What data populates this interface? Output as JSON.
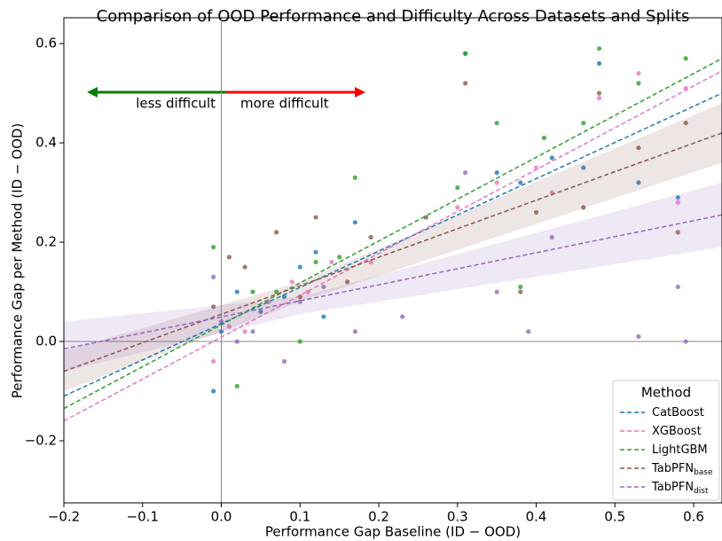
{
  "chart_data": {
    "type": "scatter",
    "title": "Comparison of OOD Performance and Difficulty Across Datasets and Splits",
    "x_label": "Performance Gap Baseline (ID − OOD)",
    "y_label": "Performance Gap per Method (ID − OOD)",
    "xlim": [
      -0.2,
      0.636
    ],
    "ylim": [
      -0.325,
      0.652
    ],
    "xticks": [
      {
        "value": -0.2,
        "label": "−0.2"
      },
      {
        "value": -0.1,
        "label": "−0.1"
      },
      {
        "value": 0,
        "label": "0.0"
      },
      0.1,
      0.2,
      0.3,
      0.4,
      0.5,
      0.6
    ],
    "yticks": [
      {
        "value": -0.2,
        "label": "−0.2"
      },
      {
        "value": 0,
        "label": "0.0"
      },
      0.2,
      0.4,
      0.6
    ],
    "annotations": [
      {
        "text": "less difficult",
        "color": "#008000"
      },
      {
        "text": "more difficult",
        "color": "#ff0000"
      }
    ],
    "legend_title": "Method",
    "legend": "lower right",
    "series": [
      {
        "name": "CatBoost",
        "color": "#1f77b4",
        "x": [
          -0.01,
          0.0,
          0.02,
          0.05,
          0.08,
          0.1,
          0.12,
          0.13,
          0.17,
          0.31,
          0.35,
          0.38,
          0.42,
          0.46,
          0.48,
          0.53,
          0.58
        ],
        "values": [
          -0.1,
          0.02,
          0.1,
          0.06,
          0.09,
          0.15,
          0.18,
          0.05,
          0.24,
          0.58,
          0.34,
          0.32,
          0.37,
          0.35,
          0.56,
          0.32,
          0.29
        ],
        "fit_x": [
          -0.2,
          0.636
        ],
        "fit": [
          -0.11,
          0.5
        ]
      },
      {
        "name": "XGBoost",
        "color": "#e377c2",
        "x": [
          -0.01,
          0.01,
          0.03,
          0.06,
          0.09,
          0.11,
          0.14,
          0.19,
          0.3,
          0.35,
          0.4,
          0.42,
          0.48,
          0.53,
          0.58,
          0.59
        ],
        "values": [
          -0.04,
          0.03,
          0.02,
          0.08,
          0.12,
          0.1,
          0.16,
          0.16,
          0.27,
          0.32,
          0.35,
          0.3,
          0.49,
          0.54,
          0.28,
          0.51
        ],
        "fit_x": [
          -0.2,
          0.636
        ],
        "fit": [
          -0.16,
          0.545
        ]
      },
      {
        "name": "LightGBM",
        "color": "#2ca02c",
        "x": [
          -0.01,
          0.02,
          0.04,
          0.07,
          0.1,
          0.12,
          0.15,
          0.17,
          0.3,
          0.31,
          0.35,
          0.38,
          0.41,
          0.46,
          0.48,
          0.53,
          0.59
        ],
        "values": [
          0.19,
          -0.09,
          0.1,
          0.1,
          0.0,
          0.16,
          0.17,
          0.33,
          0.31,
          0.58,
          0.44,
          0.11,
          0.41,
          0.44,
          0.59,
          0.52,
          0.57
        ],
        "fit_x": [
          -0.2,
          0.636
        ],
        "fit": [
          -0.135,
          0.57
        ]
      },
      {
        "name": "TabPFN",
        "subscript": "base",
        "color": "#8c564b",
        "x": [
          -0.01,
          0.01,
          0.03,
          0.07,
          0.1,
          0.12,
          0.16,
          0.19,
          0.26,
          0.31,
          0.38,
          0.4,
          0.46,
          0.48,
          0.53,
          0.58,
          0.59
        ],
        "values": [
          0.07,
          0.17,
          0.15,
          0.22,
          0.09,
          0.25,
          0.12,
          0.21,
          0.25,
          0.52,
          0.1,
          0.26,
          0.27,
          0.5,
          0.39,
          0.22,
          0.44
        ],
        "fit_x": [
          -0.2,
          0.636
        ],
        "fit": [
          -0.06,
          0.42
        ],
        "band_x": [
          -0.2,
          0.1,
          0.636
        ],
        "band_lower": [
          -0.1,
          0.08,
          0.36
        ],
        "band_upper": [
          -0.02,
          0.12,
          0.48
        ]
      },
      {
        "name": "TabPFN",
        "subscript": "dist",
        "color": "#9467bd",
        "x": [
          -0.01,
          0.0,
          0.02,
          0.04,
          0.08,
          0.1,
          0.13,
          0.17,
          0.23,
          0.31,
          0.35,
          0.39,
          0.42,
          0.53,
          0.58,
          0.59
        ],
        "values": [
          0.13,
          0.04,
          0.0,
          0.02,
          -0.04,
          0.08,
          0.11,
          0.02,
          0.05,
          0.34,
          0.1,
          0.02,
          0.21,
          0.01,
          0.11,
          0.0
        ],
        "fit_x": [
          -0.2,
          0.636
        ],
        "fit": [
          -0.015,
          0.255
        ],
        "band_x": [
          -0.2,
          0.1,
          0.636
        ],
        "band_lower": [
          -0.06,
          0.055,
          0.19
        ],
        "band_upper": [
          0.04,
          0.09,
          0.32
        ]
      }
    ]
  }
}
